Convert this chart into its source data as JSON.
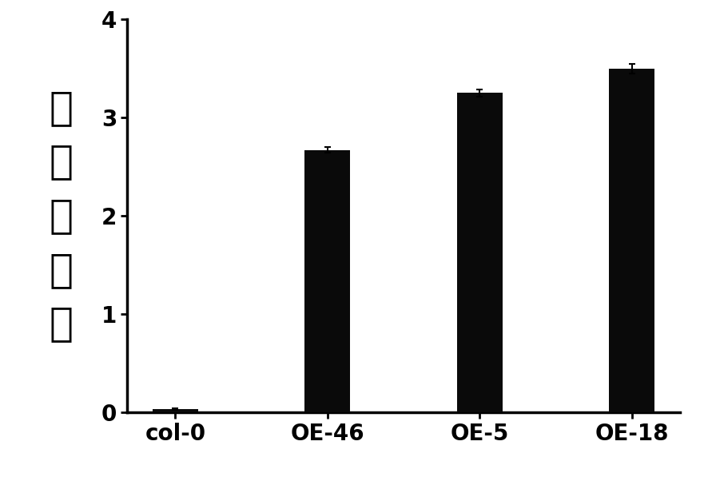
{
  "categories": [
    "col-0",
    "OE-46",
    "OE-5",
    "OE-18"
  ],
  "values": [
    0.03,
    2.67,
    3.25,
    3.5
  ],
  "errors": [
    0.01,
    0.03,
    0.04,
    0.05
  ],
  "bar_color": "#0a0a0a",
  "bar_width": 0.3,
  "ylabel_chars": [
    "相",
    "对",
    "表",
    "达",
    "量"
  ],
  "ylim": [
    0,
    4
  ],
  "yticks": [
    0,
    1,
    2,
    3,
    4
  ],
  "background_color": "#ffffff",
  "ylabel_fontsize": 36,
  "tick_fontsize": 20,
  "xlabel_fontsize": 20,
  "figsize": [
    8.86,
    6.07
  ],
  "dpi": 100
}
